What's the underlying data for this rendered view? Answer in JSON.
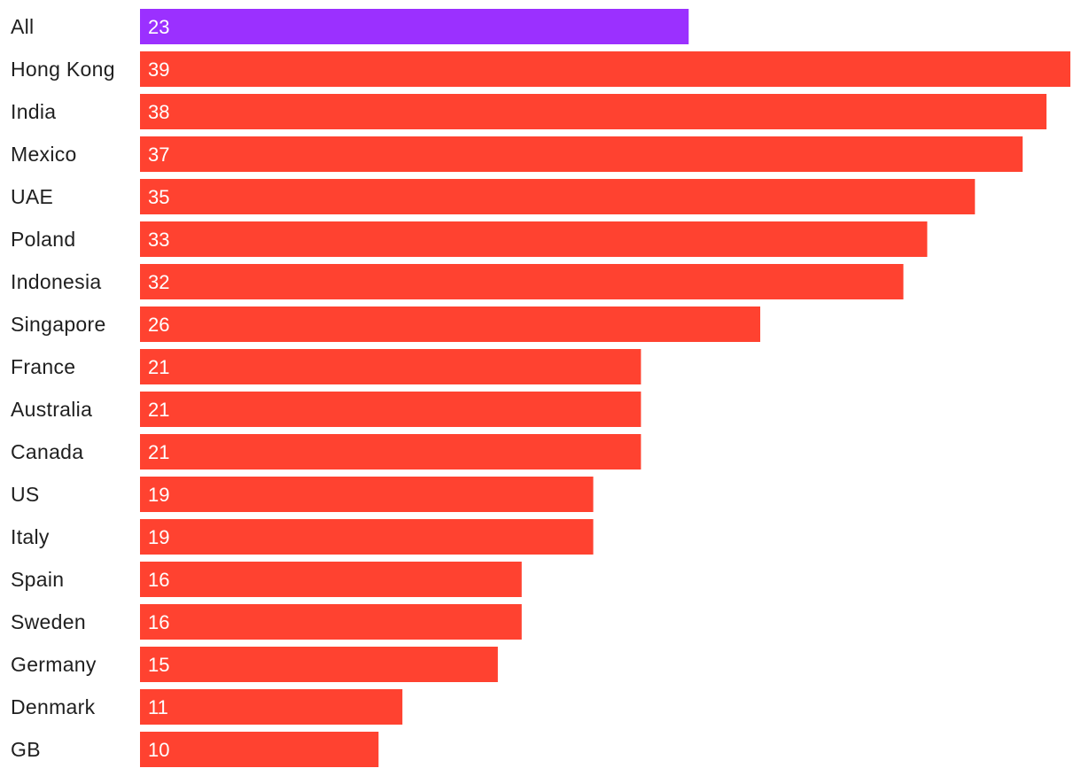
{
  "chart_data": {
    "type": "bar",
    "orientation": "horizontal",
    "categories": [
      "All",
      "Hong Kong",
      "India",
      "Mexico",
      "UAE",
      "Poland",
      "Indonesia",
      "Singapore",
      "France",
      "Australia",
      "Canada",
      "US",
      "Italy",
      "Spain",
      "Sweden",
      "Germany",
      "Denmark",
      "GB"
    ],
    "values": [
      23,
      39,
      38,
      37,
      35,
      33,
      32,
      26,
      21,
      21,
      21,
      19,
      19,
      16,
      16,
      15,
      11,
      10
    ],
    "data_labels": [
      "23",
      "39",
      "38",
      "37",
      "35",
      "33",
      "32",
      "26",
      "21",
      "21",
      "21",
      "19",
      "19",
      "16",
      "16",
      "15",
      "11",
      "10"
    ],
    "xlim": [
      0,
      39
    ],
    "grid": false,
    "legend": "none",
    "colors": {
      "highlight": "#9b30ff",
      "default": "#ff4230",
      "highlight_category": "All"
    }
  }
}
